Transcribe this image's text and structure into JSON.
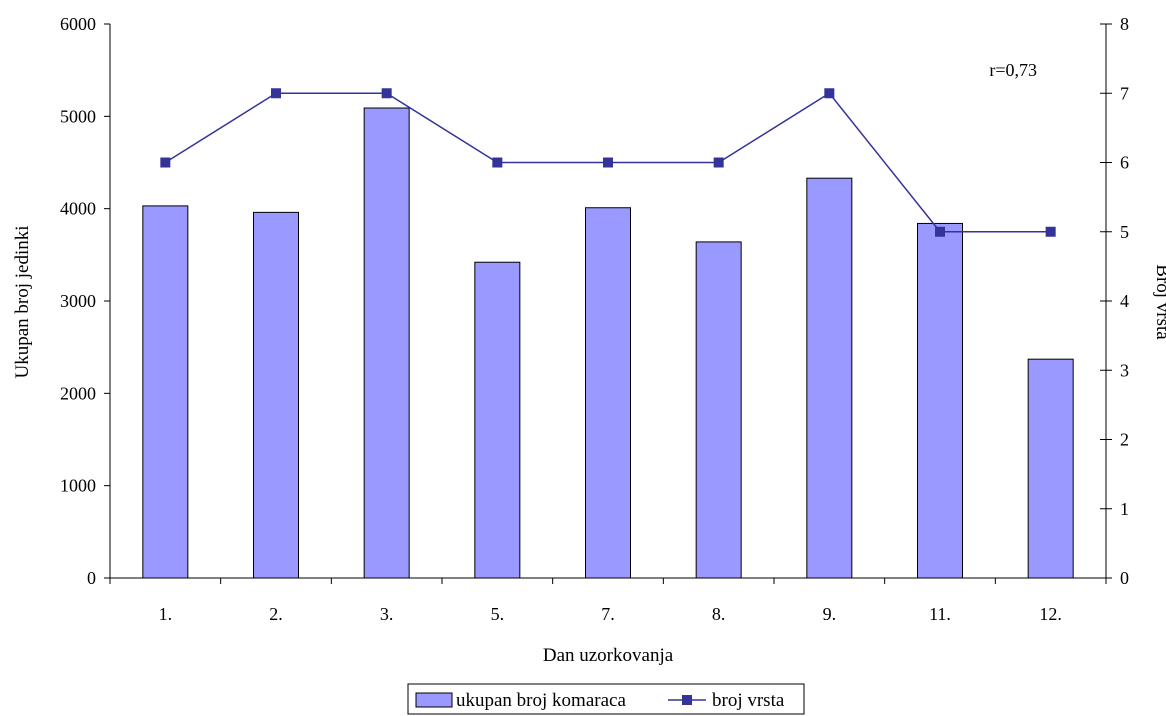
{
  "chart_data": {
    "type": "bar",
    "categories": [
      "1.",
      "2.",
      "3.",
      "5.",
      "7.",
      "8.",
      "9.",
      "11.",
      "12."
    ],
    "series": [
      {
        "name": "ukupan broj komaraca",
        "type": "bar",
        "axis": "left",
        "color": "#9999ff",
        "values": [
          4030,
          3960,
          5090,
          3420,
          4010,
          3640,
          4330,
          3840,
          2370
        ]
      },
      {
        "name": "broj vrsta",
        "type": "line",
        "axis": "right",
        "color": "#333399",
        "marker": "square",
        "values": [
          6,
          7,
          7,
          6,
          6,
          6,
          7,
          5,
          5
        ]
      }
    ],
    "xlabel": "Dan uzorkovanja",
    "ylabel": "Ukupan broj jedinki",
    "y2label": "Broj vrsta",
    "ylim": [
      0,
      6000
    ],
    "yticks": [
      "0",
      "1000",
      "2000",
      "3000",
      "4000",
      "5000",
      "6000"
    ],
    "y2lim": [
      0,
      8
    ],
    "y2ticks": [
      "0",
      "1",
      "2",
      "3",
      "4",
      "5",
      "6",
      "7",
      "8"
    ],
    "annotation": "r=0,73",
    "grid": false,
    "legend_position": "bottom"
  }
}
